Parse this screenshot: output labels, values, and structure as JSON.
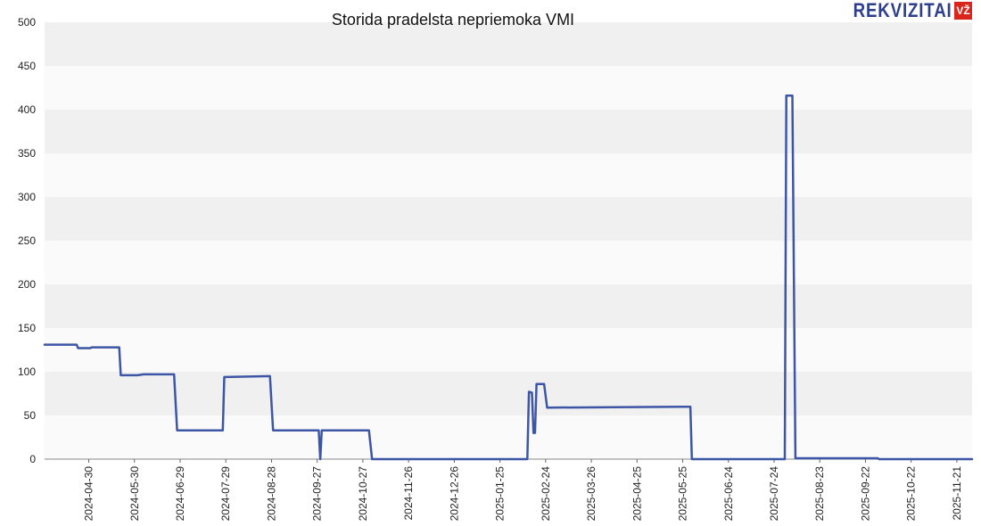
{
  "logo": {
    "text": "REKVIZITAI",
    "badge": "VŽ",
    "text_color": "#2d3e8c",
    "badge_color": "#d9261c"
  },
  "chart_data": {
    "type": "line",
    "title": "Storida pradelsta nepriemoka VMI",
    "xlabel": "",
    "ylabel": "",
    "ylim": [
      0,
      500
    ],
    "yticks": [
      0,
      50,
      100,
      150,
      200,
      250,
      300,
      350,
      400,
      450,
      500
    ],
    "xlim": [
      "2024-04-01",
      "2025-12-01"
    ],
    "xticks": [
      "2024-04-30",
      "2024-05-30",
      "2024-06-29",
      "2024-07-29",
      "2024-08-28",
      "2024-09-27",
      "2024-10-27",
      "2024-11-26",
      "2024-12-26",
      "2025-01-25",
      "2025-02-24",
      "2025-03-26",
      "2025-04-25",
      "2025-05-25",
      "2025-06-24",
      "2025-07-24",
      "2025-08-23",
      "2025-09-22",
      "2025-10-22",
      "2025-11-21"
    ],
    "grid": "horizontal bands",
    "line_color": "#3d55a5",
    "band_colors": [
      "#fafafa",
      "#f0f0f0"
    ],
    "series": [
      {
        "values": [
          [
            "2024-04-01",
            131
          ],
          [
            "2024-04-22",
            131
          ],
          [
            "2024-04-23",
            127
          ],
          [
            "2024-05-01",
            127
          ],
          [
            "2024-05-02",
            128
          ],
          [
            "2024-05-20",
            128
          ],
          [
            "2024-05-21",
            96
          ],
          [
            "2024-06-01",
            96
          ],
          [
            "2024-06-05",
            97
          ],
          [
            "2024-06-25",
            97
          ],
          [
            "2024-06-27",
            33
          ],
          [
            "2024-07-27",
            33
          ],
          [
            "2024-07-28",
            94
          ],
          [
            "2024-08-27",
            95
          ],
          [
            "2024-08-29",
            33
          ],
          [
            "2024-09-28",
            33
          ],
          [
            "2024-09-29",
            0
          ],
          [
            "2024-09-30",
            33
          ],
          [
            "2024-10-31",
            33
          ],
          [
            "2024-11-02",
            0
          ],
          [
            "2025-02-12",
            0
          ],
          [
            "2025-02-13",
            77
          ],
          [
            "2025-02-15",
            76
          ],
          [
            "2025-02-16",
            30
          ],
          [
            "2025-02-17",
            30
          ],
          [
            "2025-02-18",
            86
          ],
          [
            "2025-02-23",
            86
          ],
          [
            "2025-02-25",
            59
          ],
          [
            "2025-05-30",
            60
          ],
          [
            "2025-05-31",
            0
          ],
          [
            "2025-07-31",
            0
          ],
          [
            "2025-08-01",
            416
          ],
          [
            "2025-08-05",
            416
          ],
          [
            "2025-08-07",
            1
          ],
          [
            "2025-09-30",
            1
          ],
          [
            "2025-10-01",
            0
          ],
          [
            "2025-12-01",
            0
          ]
        ]
      }
    ]
  }
}
